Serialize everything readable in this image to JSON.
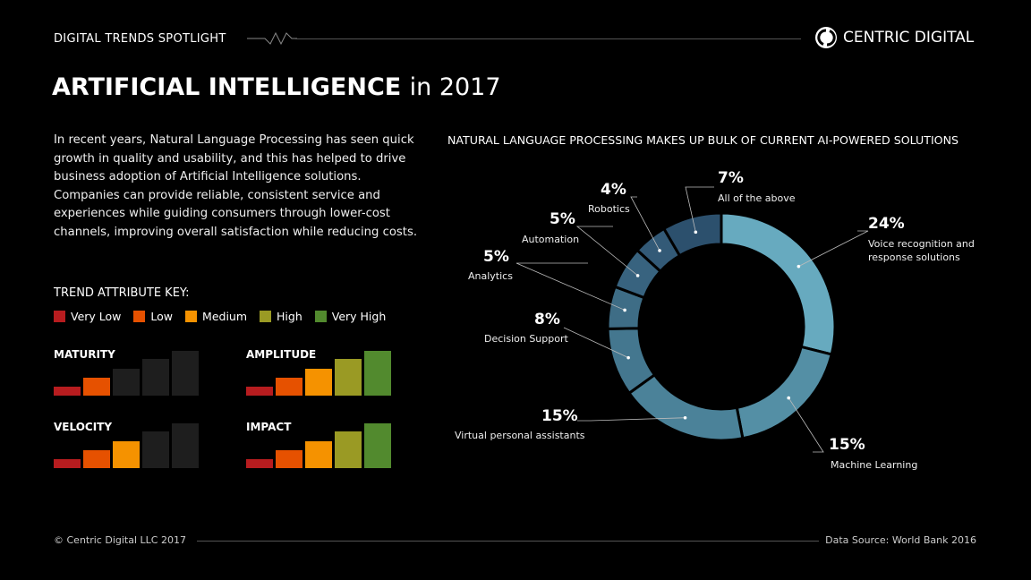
{
  "header": {
    "series": "DIGITAL TRENDS SPOTLIGHT",
    "brand": "CENTRIC DIGITAL"
  },
  "title": {
    "main": "ARTIFICIAL INTELLIGENCE",
    "suffix": "in 2017"
  },
  "intro": "In recent years, Natural Language Processing has seen quick growth in quality and usability, and this has helped to drive business adoption of Artificial Intelligence solutions. Companies can provide reliable, consistent service and experiences while guiding consumers through lower-cost channels, improving overall satisfaction while reducing costs.",
  "key": {
    "title": "TREND ATTRIBUTE KEY:",
    "levels": [
      {
        "label": "Very Low",
        "color": "#b71c1f"
      },
      {
        "label": "Low",
        "color": "#e65100"
      },
      {
        "label": "Medium",
        "color": "#f59200"
      },
      {
        "label": "High",
        "color": "#9a9a24"
      },
      {
        "label": "Very High",
        "color": "#528a2e"
      }
    ]
  },
  "attributes": [
    {
      "name": "MATURITY",
      "level": 2
    },
    {
      "name": "AMPLITUDE",
      "level": 5
    },
    {
      "name": "VELOCITY",
      "level": 3
    },
    {
      "name": "IMPACT",
      "level": 5
    }
  ],
  "chart_data": {
    "type": "pie",
    "title": "NATURAL LANGUAGE PROCESSING MAKES UP BULK OF CURRENT AI-POWERED SOLUTIONS",
    "donut": true,
    "slices": [
      {
        "label": "Voice recognition and response solutions",
        "value": 24,
        "text": "24%",
        "color": "#67aabf"
      },
      {
        "label": "Machine Learning",
        "value": 15,
        "text": "15%",
        "color": "#548fa5"
      },
      {
        "label": "Virtual personal assistants",
        "value": 15,
        "text": "15%",
        "color": "#4b8299"
      },
      {
        "label": "Decision Support",
        "value": 8,
        "text": "8%",
        "color": "#44778f"
      },
      {
        "label": "Analytics",
        "value": 5,
        "text": "5%",
        "color": "#3e6d86"
      },
      {
        "label": "Automation",
        "value": 5,
        "text": "5%",
        "color": "#38637f"
      },
      {
        "label": "Robotics",
        "value": 4,
        "text": "4%",
        "color": "#335a77"
      },
      {
        "label": "All of the above",
        "value": 7,
        "text": "7%",
        "color": "#2c506d"
      }
    ]
  },
  "footer": {
    "copyright": "© Centric Digital LLC 2017",
    "source": "Data Source: World Bank 2016"
  }
}
